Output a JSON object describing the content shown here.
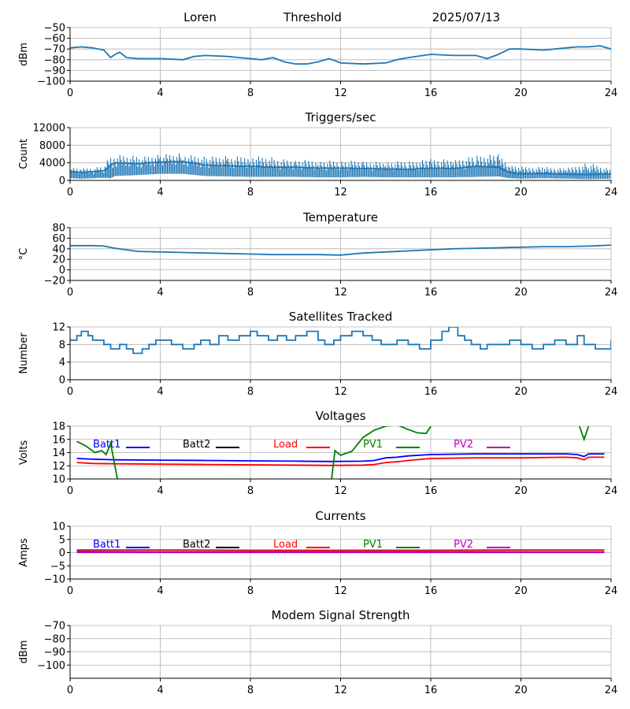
{
  "header": {
    "site": "Loren",
    "mode": "Threshold",
    "date": "2025/07/13"
  },
  "colors": {
    "main_series": "#1f77b4",
    "grid": "#b0b0b0"
  },
  "x_axis": {
    "ticks": [
      0,
      4,
      8,
      12,
      16,
      20,
      24
    ],
    "range": [
      0,
      24
    ]
  },
  "chart_data": [
    {
      "type": "line",
      "id": "threshold",
      "title": "",
      "ylabel": "dBm",
      "ylim": [
        -100,
        -50
      ],
      "yticks": [
        -100,
        -90,
        -80,
        -70,
        -60,
        -50
      ],
      "series": [
        {
          "color": "#1f77b4",
          "x": [
            0,
            0.5,
            1,
            1.5,
            1.8,
            2.0,
            2.2,
            2.5,
            3,
            4,
            5,
            5.5,
            6,
            7,
            7.5,
            8,
            8.5,
            9,
            9.5,
            10,
            10.5,
            11,
            11.5,
            12,
            13,
            14,
            14.5,
            15,
            16,
            17,
            18,
            18.5,
            19,
            19.5,
            20,
            21,
            22,
            22.5,
            23,
            23.5,
            24
          ],
          "y": [
            -69,
            -68,
            -69,
            -71,
            -78,
            -75,
            -73,
            -78,
            -79,
            -79,
            -80,
            -77,
            -76,
            -77,
            -78,
            -79,
            -80,
            -78,
            -82,
            -84,
            -84,
            -82,
            -79,
            -83,
            -84,
            -83,
            -80,
            -78,
            -75,
            -76,
            -76,
            -79,
            -75,
            -70,
            -70,
            -71,
            -69,
            -68,
            -68,
            -67,
            -70
          ]
        }
      ]
    },
    {
      "type": "line",
      "id": "triggers",
      "title": "Triggers/sec",
      "ylabel": "Count",
      "ylim": [
        0,
        12000
      ],
      "yticks": [
        0,
        4000,
        8000,
        12000
      ],
      "series": [
        {
          "color": "#1f77b4",
          "x": [
            0,
            0.5,
            1,
            1.5,
            1.8,
            2,
            3,
            4,
            5,
            6,
            7,
            8,
            9,
            10,
            11,
            12,
            13,
            14,
            15,
            16,
            17,
            18,
            19,
            19.5,
            20,
            21,
            22,
            23,
            24
          ],
          "y": [
            2000,
            1800,
            2000,
            2200,
            3500,
            4000,
            3800,
            4200,
            4300,
            3500,
            3300,
            3200,
            3000,
            3000,
            2800,
            2800,
            2700,
            2600,
            2500,
            2800,
            2700,
            3200,
            3000,
            1800,
            1500,
            1600,
            1400,
            1300,
            1500
          ],
          "band_max": [
            3000,
            2800,
            3000,
            3300,
            6000,
            6000,
            5500,
            6000,
            6200,
            5500,
            5600,
            5800,
            5200,
            4800,
            4700,
            4600,
            4500,
            4300,
            4500,
            5000,
            4800,
            5800,
            6000,
            3500,
            3200,
            3200,
            2800,
            4200,
            2500
          ],
          "band_min": [
            500,
            400,
            500,
            600,
            500,
            1000,
            1200,
            1500,
            1500,
            1000,
            900,
            800,
            800,
            800,
            700,
            700,
            800,
            700,
            700,
            700,
            700,
            800,
            900,
            500,
            400,
            500,
            400,
            300,
            400
          ]
        }
      ]
    },
    {
      "type": "line",
      "id": "temperature",
      "title": "Temperature",
      "ylabel": "°C",
      "ylim": [
        -20,
        80
      ],
      "yticks": [
        -20,
        0,
        20,
        40,
        60,
        80
      ],
      "series": [
        {
          "color": "#1f77b4",
          "x": [
            0,
            1,
            1.5,
            2,
            2.5,
            3,
            4,
            5,
            6,
            7,
            8,
            9,
            10,
            11,
            12,
            13,
            14,
            15,
            16,
            17,
            18,
            19,
            20,
            21,
            22,
            23,
            24
          ],
          "y": [
            46,
            46,
            45,
            41,
            38,
            35,
            34,
            33,
            32,
            31,
            30,
            29,
            29,
            29,
            28,
            32,
            34,
            36,
            38,
            40,
            41,
            42,
            43,
            44,
            44,
            45,
            47
          ]
        }
      ]
    },
    {
      "type": "line",
      "id": "satellites",
      "title": "Satellites Tracked",
      "ylabel": "Number",
      "ylim": [
        0,
        12
      ],
      "yticks": [
        0,
        4,
        8,
        12
      ],
      "series": [
        {
          "color": "#1f77b4",
          "step": true,
          "x": [
            0,
            0.3,
            0.5,
            0.8,
            1,
            1.5,
            1.8,
            2.2,
            2.5,
            2.8,
            3.2,
            3.5,
            3.8,
            4.5,
            5,
            5.5,
            5.8,
            6.2,
            6.6,
            7,
            7.5,
            8,
            8.3,
            8.8,
            9.2,
            9.6,
            10,
            10.5,
            11,
            11.3,
            11.7,
            12,
            12.5,
            13,
            13.4,
            13.8,
            14.5,
            15,
            15.5,
            16,
            16.5,
            16.8,
            17.2,
            17.5,
            17.8,
            18.2,
            18.5,
            19,
            19.5,
            20,
            20.5,
            21,
            21.5,
            22,
            22.5,
            22.8,
            23.3,
            24
          ],
          "y": [
            9,
            10,
            11,
            10,
            9,
            8,
            7,
            8,
            7,
            6,
            7,
            8,
            9,
            8,
            7,
            8,
            9,
            8,
            10,
            9,
            10,
            11,
            10,
            9,
            10,
            9,
            10,
            11,
            9,
            8,
            9,
            10,
            11,
            10,
            9,
            8,
            9,
            8,
            7,
            9,
            11,
            12,
            10,
            9,
            8,
            7,
            8,
            8,
            9,
            8,
            7,
            8,
            9,
            8,
            10,
            8,
            7,
            9
          ]
        }
      ]
    },
    {
      "type": "line",
      "id": "voltages",
      "title": "Voltages",
      "ylabel": "Volts",
      "ylim": [
        10,
        18
      ],
      "yticks": [
        10,
        12,
        14,
        16,
        18
      ],
      "legend": [
        {
          "label": "Batt1",
          "color": "#0000ff"
        },
        {
          "label": "Batt2",
          "color": "#000000"
        },
        {
          "label": "Load",
          "color": "#ff0000"
        },
        {
          "label": "PV1",
          "color": "#008000"
        },
        {
          "label": "PV2",
          "color": "#bf00bf"
        }
      ],
      "series": [
        {
          "name": "Batt1",
          "color": "#0000ff",
          "x": [
            0.3,
            1,
            2,
            4,
            6,
            8,
            10,
            11.5,
            13,
            13.5,
            14,
            14.5,
            15,
            16,
            18,
            20,
            22,
            22.5,
            22.8,
            23,
            23.7
          ],
          "y": [
            13.1,
            13.0,
            12.9,
            12.85,
            12.8,
            12.75,
            12.7,
            12.65,
            12.7,
            12.8,
            13.2,
            13.3,
            13.5,
            13.7,
            13.8,
            13.8,
            13.8,
            13.7,
            13.4,
            13.8,
            13.8
          ]
        },
        {
          "name": "Load",
          "color": "#ff0000",
          "x": [
            0.3,
            1,
            2,
            4,
            6,
            8,
            10,
            11.5,
            13,
            13.5,
            14,
            14.5,
            15,
            16,
            18,
            20,
            22,
            22.5,
            22.8,
            23,
            23.7
          ],
          "y": [
            12.5,
            12.35,
            12.3,
            12.25,
            12.2,
            12.15,
            12.1,
            12.05,
            12.1,
            12.2,
            12.5,
            12.6,
            12.8,
            13.1,
            13.2,
            13.2,
            13.3,
            13.2,
            12.9,
            13.3,
            13.3
          ]
        },
        {
          "name": "PV1",
          "color": "#008000",
          "segments": [
            {
              "x": [
                0.3,
                0.7,
                1.1,
                1.4,
                1.6,
                1.8,
                2.1
              ],
              "y": [
                15.7,
                15.0,
                14.0,
                14.3,
                13.7,
                15.4,
                10.0
              ]
            },
            {
              "x": [
                11.6,
                11.75,
                12.0,
                12.5,
                13.0,
                13.5,
                14.0,
                14.5,
                15.0,
                15.4,
                15.8,
                16.0
              ],
              "y": [
                10.0,
                14.3,
                13.6,
                14.2,
                16.3,
                17.4,
                18.0,
                18.2,
                17.5,
                17.0,
                16.9,
                18.0
              ]
            },
            {
              "x": [
                22.6,
                22.8,
                23.0
              ],
              "y": [
                18.0,
                16.0,
                18.0
              ]
            }
          ]
        }
      ]
    },
    {
      "type": "line",
      "id": "currents",
      "title": "Currents",
      "ylabel": "Amps",
      "ylim": [
        -10,
        10
      ],
      "yticks": [
        -10,
        -5,
        0,
        5,
        10
      ],
      "legend": [
        {
          "label": "Batt1",
          "color": "#0000ff"
        },
        {
          "label": "Batt2",
          "color": "#000000"
        },
        {
          "label": "Load",
          "color": "#ff0000"
        },
        {
          "label": "PV1",
          "color": "#008000"
        },
        {
          "label": "PV2",
          "color": "#bf00bf"
        }
      ],
      "series": [
        {
          "name": "Load",
          "color": "#ff0000",
          "x": [
            0.3,
            4,
            8,
            12,
            16,
            20,
            23.7
          ],
          "y": [
            1.0,
            1.0,
            0.9,
            0.9,
            0.9,
            1.0,
            1.0
          ]
        },
        {
          "name": "Batt1",
          "color": "#0000ff",
          "x": [
            0.3,
            4,
            8,
            12,
            16,
            20,
            23.7
          ],
          "y": [
            0.4,
            0.3,
            0.3,
            0.3,
            0.3,
            0.3,
            0.3
          ]
        },
        {
          "name": "PV2",
          "color": "#bf00bf",
          "x": [
            0.3,
            4,
            8,
            12,
            16,
            20,
            23.7
          ],
          "y": [
            0.1,
            0.1,
            0.1,
            0.1,
            0.1,
            0.1,
            0.1
          ]
        }
      ]
    },
    {
      "type": "line",
      "id": "modem",
      "title": "Modem Signal Strength",
      "ylabel": "dBm",
      "ylim": [
        -110,
        -70
      ],
      "yticks": [
        -100,
        -90,
        -80,
        -70
      ],
      "series": []
    }
  ]
}
